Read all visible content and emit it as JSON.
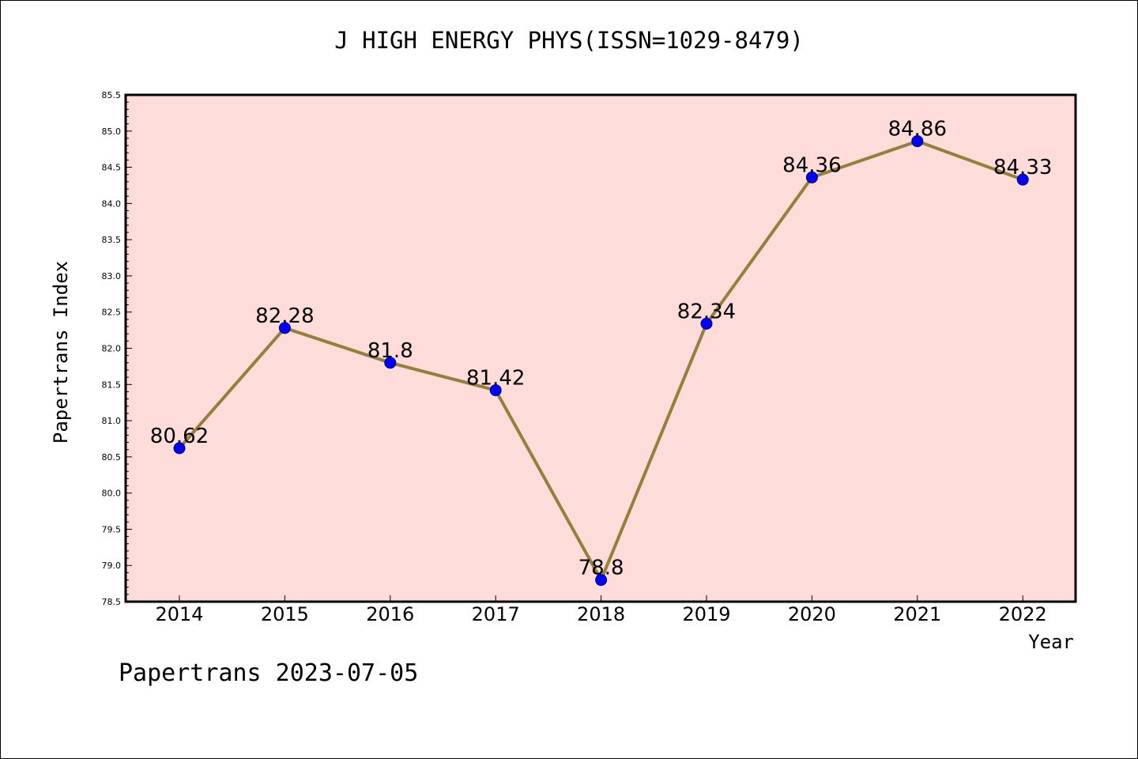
{
  "title": "J HIGH ENERGY PHYS(ISSN=1029-8479)",
  "footer": "Papertrans 2023-07-05",
  "colors": {
    "plot_background": "#fddcda",
    "line": "#94803a",
    "marker": "#0000ff",
    "axis": "#000000"
  },
  "chart_data": {
    "type": "line",
    "title": "J HIGH ENERGY PHYS(ISSN=1029-8479)",
    "xlabel": "Year",
    "ylabel": "Papertrans Index",
    "categories": [
      "2014",
      "2015",
      "2016",
      "2017",
      "2018",
      "2019",
      "2020",
      "2021",
      "2022"
    ],
    "series": [
      {
        "values": [
          80.62,
          82.28,
          81.8,
          81.42,
          78.8,
          82.34,
          84.36,
          84.86,
          84.33
        ],
        "labels": [
          "80.62",
          "82.28",
          "81.8",
          "81.42",
          "78.8",
          "82.34",
          "84.36",
          "84.86",
          "84.33"
        ]
      }
    ],
    "ylim": [
      78.5,
      85.5
    ],
    "yticks": [
      "78.5",
      "79.0",
      "79.5",
      "80.0",
      "80.5",
      "81.0",
      "81.5",
      "82.0",
      "82.5",
      "83.0",
      "83.5",
      "84.0",
      "84.5",
      "85.0",
      "85.5"
    ],
    "grid": false,
    "legend": "none"
  }
}
